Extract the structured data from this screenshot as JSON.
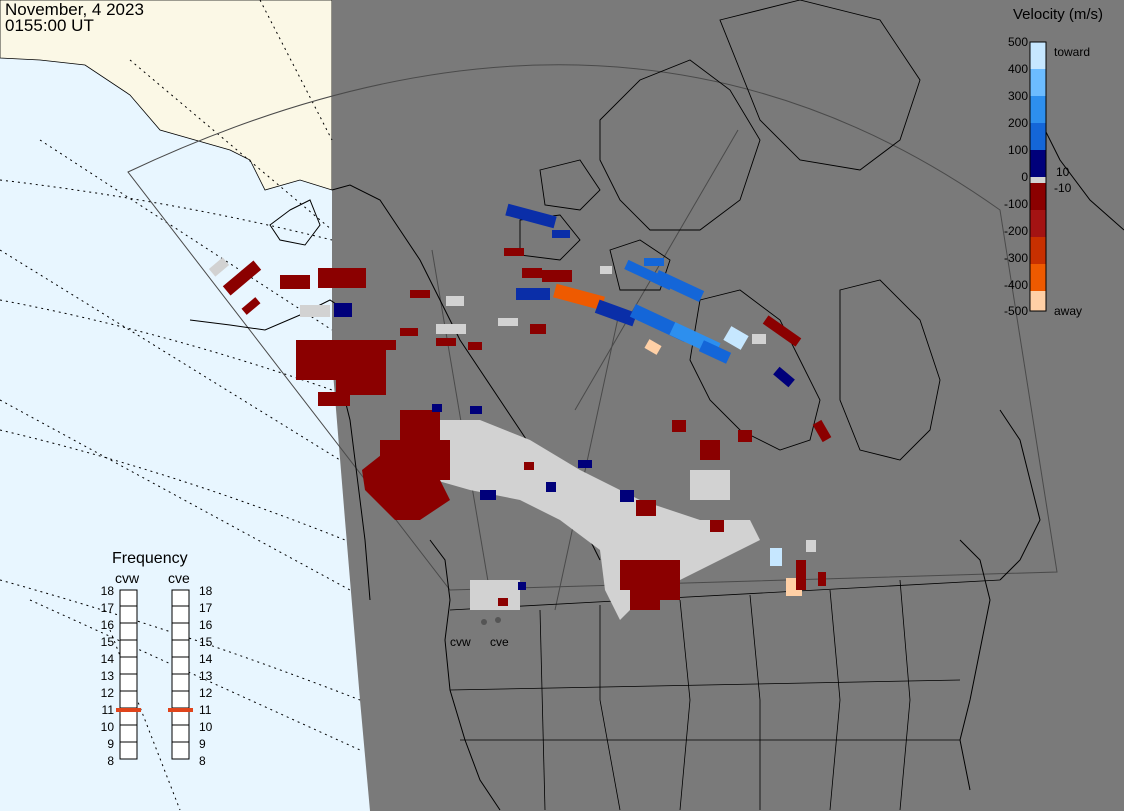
{
  "timestamp": {
    "date": "November, 4 2023",
    "time": "0155:00 UT"
  },
  "colorbar": {
    "title": "Velocity (m/s)",
    "ticks": [
      "500",
      "400",
      "300",
      "200",
      "100",
      "0",
      "-100",
      "-200",
      "-300",
      "-400",
      "-500"
    ],
    "inner_positive": "10",
    "inner_negative": "-10",
    "toward_label": "toward",
    "away_label": "away",
    "colors": [
      "#ffd0a6",
      "#ff8a00",
      "#ee5a00",
      "#c83000",
      "#a31313",
      "#8b0000",
      "#d2d2d2",
      "#00007a",
      "#0a2ea8",
      "#1466d8",
      "#2d8fee",
      "#6cbcff",
      "#c6e7ff"
    ]
  },
  "frequency": {
    "title": "Frequency",
    "radars": [
      "cvw",
      "cve"
    ],
    "scale": [
      "18",
      "17",
      "16",
      "15",
      "14",
      "13",
      "12",
      "11",
      "10",
      "9",
      "8"
    ],
    "values_mhz": [
      10.9,
      10.9
    ],
    "indicator_color": "#e0441b"
  },
  "radar_sites": [
    {
      "code": "cvw"
    },
    {
      "code": "cve"
    }
  ],
  "colors": {
    "ocean_night": "#e8f6ff",
    "land_day": "#fbf8e6",
    "night": "#7a7a7a",
    "ground_scatter": "#d2d2d2"
  }
}
